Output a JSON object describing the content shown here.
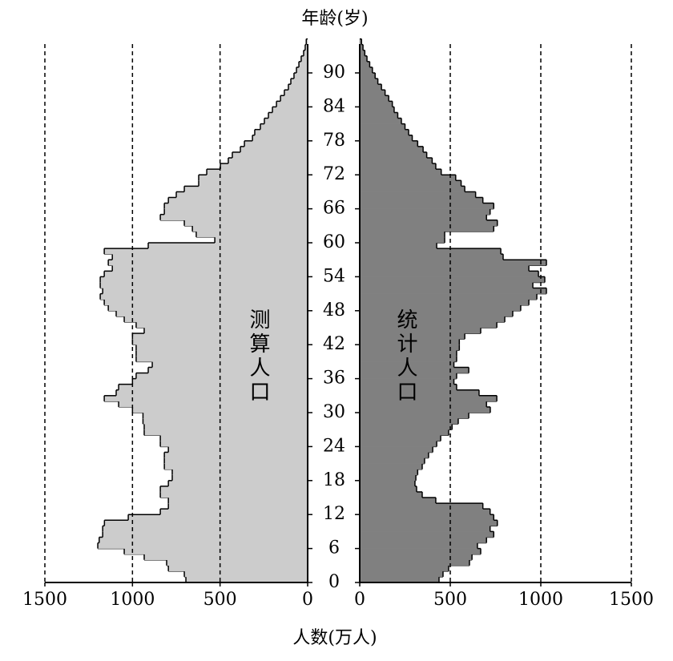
{
  "chart_data": {
    "type": "bar",
    "orientation": "horizontal-pyramid",
    "ylabel": "年龄(岁)",
    "xlabel": "人数(万人)",
    "y": [
      0,
      1,
      2,
      3,
      4,
      5,
      6,
      7,
      8,
      9,
      10,
      11,
      12,
      13,
      14,
      15,
      16,
      17,
      18,
      19,
      20,
      21,
      22,
      23,
      24,
      25,
      26,
      27,
      28,
      29,
      30,
      31,
      32,
      33,
      34,
      35,
      36,
      37,
      38,
      39,
      40,
      41,
      42,
      43,
      44,
      45,
      46,
      47,
      48,
      49,
      50,
      51,
      52,
      53,
      54,
      55,
      56,
      57,
      58,
      59,
      60,
      61,
      62,
      63,
      64,
      65,
      66,
      67,
      68,
      69,
      70,
      71,
      72,
      73,
      74,
      75,
      76,
      77,
      78,
      79,
      80,
      81,
      82,
      83,
      84,
      85,
      86,
      87,
      88,
      89,
      90,
      91,
      92,
      93,
      94,
      95
    ],
    "ylim": [
      0,
      96
    ],
    "yticks": [
      0,
      6,
      12,
      18,
      24,
      30,
      36,
      42,
      48,
      54,
      60,
      66,
      72,
      78,
      84,
      90
    ],
    "xlim": [
      0,
      1500
    ],
    "xticks": [
      0,
      500,
      1000,
      1500
    ],
    "grid": true,
    "series": [
      {
        "name": "测算人口",
        "color": "#cccccc",
        "side": "left",
        "values": [
          695,
          704,
          795,
          805,
          933,
          1047,
          1198,
          1190,
          1170,
          1170,
          1160,
          1024,
          841,
          795,
          795,
          841,
          841,
          795,
          773,
          773,
          818,
          818,
          818,
          795,
          841,
          841,
          933,
          933,
          940,
          940,
          1000,
          1079,
          1161,
          1093,
          1079,
          1000,
          979,
          910,
          887,
          979,
          979,
          979,
          1000,
          1000,
          933,
          979,
          1047,
          1093,
          1138,
          1161,
          1184,
          1170,
          1184,
          1184,
          1161,
          1115,
          1138,
          1115,
          1161,
          910,
          530,
          636,
          658,
          704,
          841,
          818,
          818,
          795,
          750,
          704,
          622,
          622,
          576,
          498,
          453,
          430,
          384,
          361,
          315,
          302,
          270,
          247,
          224,
          201,
          178,
          155,
          133,
          110,
          96,
          78,
          64,
          50,
          37,
          23,
          14,
          8
        ]
      },
      {
        "name": "统计人口",
        "color": "#808080",
        "side": "right",
        "values": [
          438,
          460,
          491,
          606,
          620,
          668,
          650,
          700,
          740,
          720,
          760,
          740,
          720,
          680,
          420,
          345,
          314,
          305,
          310,
          320,
          345,
          358,
          380,
          403,
          425,
          447,
          491,
          510,
          544,
          602,
          721,
          700,
          757,
          659,
          535,
          520,
          535,
          602,
          520,
          535,
          535,
          550,
          550,
          580,
          668,
          757,
          801,
          845,
          889,
          934,
          978,
          1031,
          956,
          1022,
          987,
          934,
          1031,
          792,
          779,
          425,
          469,
          469,
          740,
          760,
          700,
          720,
          740,
          680,
          640,
          580,
          560,
          530,
          450,
          420,
          400,
          370,
          350,
          320,
          290,
          270,
          250,
          230,
          210,
          190,
          180,
          160,
          140,
          120,
          100,
          85,
          70,
          55,
          40,
          28,
          18,
          10
        ]
      }
    ]
  }
}
